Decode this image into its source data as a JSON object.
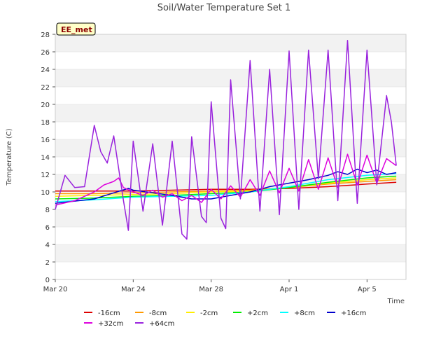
{
  "chart_data": {
    "type": "line",
    "title": "Soil/Water Temperature Set 1",
    "xlabel": "Time",
    "ylabel": "Temperature (C)",
    "site_label": "EE_met",
    "x_domain": [
      "2024-03-20",
      "2024-04-07"
    ],
    "x_ticks": [
      {
        "date": "2024-03-20",
        "label": "Mar 20"
      },
      {
        "date": "2024-03-24",
        "label": "Mar 24"
      },
      {
        "date": "2024-03-28",
        "label": "Mar 28"
      },
      {
        "date": "2024-04-01",
        "label": "Apr 1"
      },
      {
        "date": "2024-04-05",
        "label": "Apr 5"
      }
    ],
    "ylim": [
      0,
      28
    ],
    "y_ticks": [
      0,
      2,
      4,
      6,
      8,
      10,
      12,
      14,
      16,
      18,
      20,
      22,
      24,
      26,
      28
    ],
    "grid": "horizontal bands",
    "legend_position": "bottom",
    "series": [
      {
        "name": "-16cm",
        "color": "#dd0000",
        "width": 1.5,
        "points": [
          [
            "2024-03-20",
            10.1
          ],
          [
            "2024-03-22",
            10.1
          ],
          [
            "2024-03-24",
            10.1
          ],
          [
            "2024-03-26",
            10.2
          ],
          [
            "2024-03-28",
            10.3
          ],
          [
            "2024-03-30",
            10.3
          ],
          [
            "2024-04-01",
            10.4
          ],
          [
            "2024-04-03",
            10.6
          ],
          [
            "2024-04-05",
            10.9
          ],
          [
            "2024-04-06 12:00",
            11.1
          ]
        ]
      },
      {
        "name": "-8cm",
        "color": "#ff9900",
        "width": 1.5,
        "points": [
          [
            "2024-03-20",
            9.8
          ],
          [
            "2024-03-22",
            9.8
          ],
          [
            "2024-03-24",
            9.9
          ],
          [
            "2024-03-26",
            10.0
          ],
          [
            "2024-03-28",
            10.1
          ],
          [
            "2024-03-30",
            10.2
          ],
          [
            "2024-04-01",
            10.5
          ],
          [
            "2024-04-03",
            10.9
          ],
          [
            "2024-04-05",
            11.2
          ],
          [
            "2024-04-06 12:00",
            11.4
          ]
        ]
      },
      {
        "name": "-2cm",
        "color": "#ffee00",
        "width": 1.5,
        "points": [
          [
            "2024-03-20",
            9.5
          ],
          [
            "2024-03-22",
            9.6
          ],
          [
            "2024-03-24",
            9.7
          ],
          [
            "2024-03-26",
            9.8
          ],
          [
            "2024-03-28",
            10.0
          ],
          [
            "2024-03-30",
            10.1
          ],
          [
            "2024-04-01",
            10.5
          ],
          [
            "2024-04-03",
            11.0
          ],
          [
            "2024-04-05",
            11.4
          ],
          [
            "2024-04-06 12:00",
            11.6
          ]
        ]
      },
      {
        "name": "+2cm",
        "color": "#00ee00",
        "width": 1.5,
        "points": [
          [
            "2024-03-20",
            9.2
          ],
          [
            "2024-03-22",
            9.3
          ],
          [
            "2024-03-24",
            9.5
          ],
          [
            "2024-03-26",
            9.6
          ],
          [
            "2024-03-28",
            9.8
          ],
          [
            "2024-03-30",
            10.0
          ],
          [
            "2024-04-01",
            10.5
          ],
          [
            "2024-04-03",
            11.1
          ],
          [
            "2024-04-05",
            11.6
          ],
          [
            "2024-04-06 12:00",
            11.8
          ]
        ]
      },
      {
        "name": "+8cm",
        "color": "#00ffff",
        "width": 1.5,
        "points": [
          [
            "2024-03-20",
            8.9
          ],
          [
            "2024-03-22",
            9.1
          ],
          [
            "2024-03-24",
            9.4
          ],
          [
            "2024-03-26",
            9.5
          ],
          [
            "2024-03-28",
            9.6
          ],
          [
            "2024-03-30",
            10.0
          ],
          [
            "2024-04-01",
            10.6
          ],
          [
            "2024-04-03",
            11.4
          ],
          [
            "2024-04-05",
            11.9
          ],
          [
            "2024-04-06 12:00",
            12.1
          ]
        ]
      },
      {
        "name": "+16cm",
        "color": "#0000cc",
        "width": 1.5,
        "points": [
          [
            "2024-03-20",
            8.7
          ],
          [
            "2024-03-22",
            9.2
          ],
          [
            "2024-03-23",
            9.9
          ],
          [
            "2024-03-23 18:00",
            10.4
          ],
          [
            "2024-03-24",
            10.2
          ],
          [
            "2024-03-25",
            9.9
          ],
          [
            "2024-03-26",
            9.6
          ],
          [
            "2024-03-27",
            9.2
          ],
          [
            "2024-03-28",
            9.2
          ],
          [
            "2024-03-29",
            9.6
          ],
          [
            "2024-03-30",
            10.0
          ],
          [
            "2024-03-31",
            10.6
          ],
          [
            "2024-04-01",
            11.0
          ],
          [
            "2024-04-02",
            11.4
          ],
          [
            "2024-04-03",
            11.9
          ],
          [
            "2024-04-03 12:00",
            12.3
          ],
          [
            "2024-04-04",
            12.0
          ],
          [
            "2024-04-04 12:00",
            12.6
          ],
          [
            "2024-04-05",
            12.2
          ],
          [
            "2024-04-05 12:00",
            12.5
          ],
          [
            "2024-04-06",
            12.0
          ],
          [
            "2024-04-06 12:00",
            12.2
          ]
        ]
      },
      {
        "name": "+32cm",
        "color": "#dd00dd",
        "width": 1.5,
        "points": [
          [
            "2024-03-20",
            8.5
          ],
          [
            "2024-03-21",
            9.0
          ],
          [
            "2024-03-22",
            10.0
          ],
          [
            "2024-03-22 12:00",
            10.8
          ],
          [
            "2024-03-23",
            11.2
          ],
          [
            "2024-03-23 06:00",
            11.6
          ],
          [
            "2024-03-23 12:00",
            10.5
          ],
          [
            "2024-03-24",
            10.0
          ],
          [
            "2024-03-24 12:00",
            9.6
          ],
          [
            "2024-03-25",
            10.2
          ],
          [
            "2024-03-25 12:00",
            9.4
          ],
          [
            "2024-03-26",
            9.8
          ],
          [
            "2024-03-26 12:00",
            9.0
          ],
          [
            "2024-03-27",
            9.6
          ],
          [
            "2024-03-27 12:00",
            8.8
          ],
          [
            "2024-03-28",
            10.3
          ],
          [
            "2024-03-28 12:00",
            9.2
          ],
          [
            "2024-03-29",
            10.7
          ],
          [
            "2024-03-29 12:00",
            9.4
          ],
          [
            "2024-03-30",
            11.4
          ],
          [
            "2024-03-30 12:00",
            9.6
          ],
          [
            "2024-03-31",
            12.4
          ],
          [
            "2024-03-31 12:00",
            9.9
          ],
          [
            "2024-04-01",
            12.7
          ],
          [
            "2024-04-01 12:00",
            10.1
          ],
          [
            "2024-04-02",
            13.7
          ],
          [
            "2024-04-02 12:00",
            10.3
          ],
          [
            "2024-04-03",
            13.9
          ],
          [
            "2024-04-03 12:00",
            10.5
          ],
          [
            "2024-04-04",
            14.3
          ],
          [
            "2024-04-04 12:00",
            10.8
          ],
          [
            "2024-04-05",
            14.2
          ],
          [
            "2024-04-05 12:00",
            11.0
          ],
          [
            "2024-04-06",
            13.8
          ],
          [
            "2024-04-06 12:00",
            13.0
          ]
        ]
      },
      {
        "name": "+64cm",
        "color": "#9922dd",
        "width": 1.5,
        "points": [
          [
            "2024-03-20",
            8.0
          ],
          [
            "2024-03-20 12:00",
            11.9
          ],
          [
            "2024-03-21",
            10.5
          ],
          [
            "2024-03-21 12:00",
            10.6
          ],
          [
            "2024-03-22",
            17.6
          ],
          [
            "2024-03-22 08:00",
            14.6
          ],
          [
            "2024-03-22 16:00",
            13.3
          ],
          [
            "2024-03-23",
            16.4
          ],
          [
            "2024-03-23 12:00",
            9.0
          ],
          [
            "2024-03-23 18:00",
            5.6
          ],
          [
            "2024-03-24",
            15.8
          ],
          [
            "2024-03-24 12:00",
            7.8
          ],
          [
            "2024-03-25",
            15.5
          ],
          [
            "2024-03-25 12:00",
            6.2
          ],
          [
            "2024-03-26",
            15.8
          ],
          [
            "2024-03-26 12:00",
            5.2
          ],
          [
            "2024-03-26 18:00",
            4.6
          ],
          [
            "2024-03-27",
            16.3
          ],
          [
            "2024-03-27 12:00",
            7.2
          ],
          [
            "2024-03-27 18:00",
            6.5
          ],
          [
            "2024-03-28",
            20.3
          ],
          [
            "2024-03-28 12:00",
            7.0
          ],
          [
            "2024-03-28 18:00",
            5.8
          ],
          [
            "2024-03-29",
            22.8
          ],
          [
            "2024-03-29 12:00",
            9.2
          ],
          [
            "2024-03-30",
            25.0
          ],
          [
            "2024-03-30 12:00",
            7.8
          ],
          [
            "2024-03-31",
            24.0
          ],
          [
            "2024-03-31 12:00",
            7.4
          ],
          [
            "2024-04-01",
            26.1
          ],
          [
            "2024-04-01 12:00",
            8.0
          ],
          [
            "2024-04-02",
            26.2
          ],
          [
            "2024-04-02 12:00",
            11.5
          ],
          [
            "2024-04-03",
            26.2
          ],
          [
            "2024-04-03 12:00",
            9.0
          ],
          [
            "2024-04-04",
            27.3
          ],
          [
            "2024-04-04 12:00",
            8.7
          ],
          [
            "2024-04-05",
            26.2
          ],
          [
            "2024-04-05 12:00",
            10.8
          ],
          [
            "2024-04-06",
            21.0
          ],
          [
            "2024-04-06 06:00",
            18.0
          ],
          [
            "2024-04-06 12:00",
            13.0
          ]
        ]
      }
    ]
  }
}
